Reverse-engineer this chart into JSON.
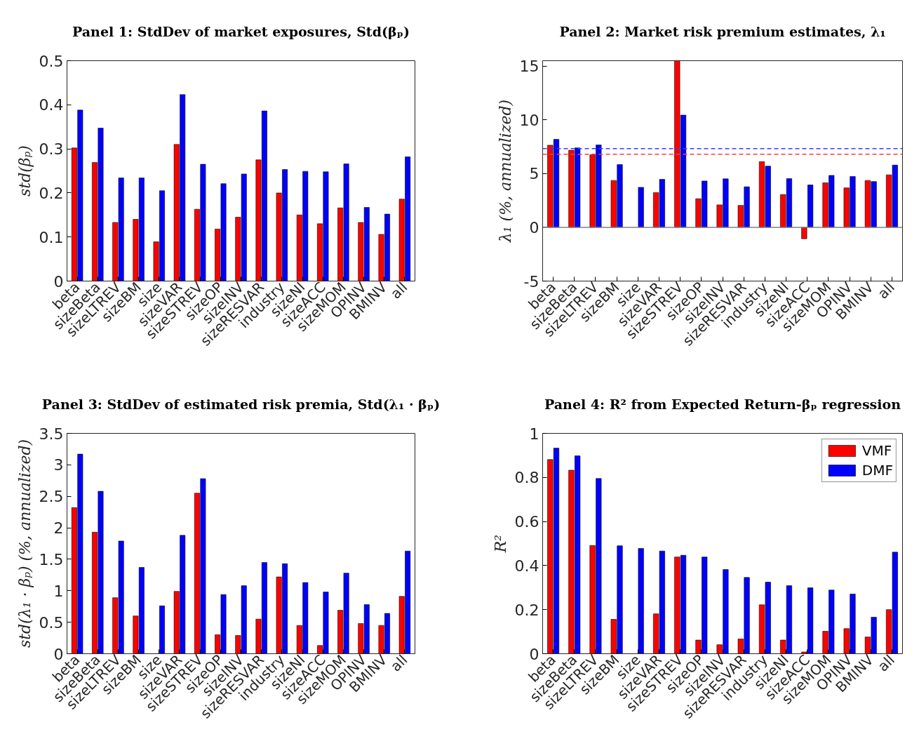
{
  "chart_data": [
    {
      "type": "bar",
      "title": "Panel 1: StdDev of market exposures, Std(βₚ)",
      "ylabel": "std(βₚ)",
      "categories": [
        "beta",
        "sizeBeta",
        "sizeLTREV",
        "sizeBM",
        "size",
        "sizeVAR",
        "sizeSTREV",
        "sizeOP",
        "sizeINV",
        "sizeRESVAR",
        "industry",
        "sizeNI",
        "sizeACC",
        "sizeMOM",
        "OPINV",
        "BMINV",
        "all"
      ],
      "series": [
        {
          "color": "#ff0000",
          "values": [
            0.302,
            0.269,
            0.133,
            0.14,
            0.089,
            0.31,
            0.163,
            0.118,
            0.145,
            0.275,
            0.2,
            0.15,
            0.13,
            0.166,
            0.133,
            0.106,
            0.186
          ]
        },
        {
          "color": "#0000ff",
          "values": [
            0.388,
            0.347,
            0.234,
            0.234,
            0.205,
            0.423,
            0.265,
            0.221,
            0.243,
            0.386,
            0.253,
            0.249,
            0.248,
            0.266,
            0.167,
            0.152,
            0.282
          ]
        }
      ],
      "ylim": [
        0,
        0.5
      ],
      "yticks": [
        0,
        0.1,
        0.2,
        0.3,
        0.4,
        0.5
      ]
    },
    {
      "type": "bar",
      "title": "Panel 2: Market risk premium estimates, λ₁",
      "ylabel": "λ₁ (%, annualized)",
      "categories": [
        "beta",
        "sizeBeta",
        "sizeLTREV",
        "sizeBM",
        "size",
        "sizeVAR",
        "sizeSTREV",
        "sizeOP",
        "sizeINV",
        "sizeRESVAR",
        "industry",
        "sizeNI",
        "sizeACC",
        "sizeMOM",
        "OPINV",
        "BMINV",
        "all"
      ],
      "series": [
        {
          "color": "#ff0000",
          "values": [
            7.64,
            7.17,
            6.75,
            4.36,
            null,
            3.23,
            15.5,
            2.66,
            2.09,
            2.04,
            6.11,
            3.05,
            -1.06,
            4.14,
            3.67,
            4.36,
            4.88
          ]
        },
        {
          "color": "#0000ff",
          "values": [
            8.18,
            7.39,
            7.66,
            5.84,
            3.72,
            4.46,
            10.44,
            4.31,
            4.51,
            3.77,
            5.69,
            4.53,
            3.94,
            4.83,
            4.73,
            4.26,
            5.79
          ]
        }
      ],
      "ylim": [
        -5,
        15.5
      ],
      "yticks": [
        -5,
        0,
        5,
        10,
        15
      ],
      "ref_lines": [
        {
          "axis": "y",
          "value": 0,
          "color": "#808080",
          "line_style": "solid"
        },
        {
          "axis": "y",
          "value": 7.32,
          "color": "#3b3bff",
          "line_style": "dashed"
        },
        {
          "axis": "y",
          "value": 6.8,
          "color": "#ff3b3b",
          "line_style": "dashed"
        }
      ]
    },
    {
      "type": "bar",
      "title": "Panel 3: StdDev of estimated risk premia, Std(λ₁ · βₚ)",
      "ylabel": "std(λ₁ · βₚ) (%, annualized)",
      "categories": [
        "beta",
        "sizeBeta",
        "sizeLTREV",
        "sizeBM",
        "size",
        "sizeVAR",
        "sizeSTREV",
        "sizeOP",
        "sizeINV",
        "sizeRESVAR",
        "industry",
        "sizeNI",
        "sizeACC",
        "sizeMOM",
        "OPINV",
        "BMINV",
        "all"
      ],
      "series": [
        {
          "color": "#ff0000",
          "values": [
            2.32,
            1.93,
            0.89,
            0.6,
            0,
            0.99,
            2.55,
            0.3,
            0.29,
            0.55,
            1.22,
            0.45,
            0.13,
            0.69,
            0.48,
            0.45,
            0.91
          ]
        },
        {
          "color": "#0000ff",
          "values": [
            3.17,
            2.58,
            1.79,
            1.37,
            0.76,
            1.88,
            2.78,
            0.94,
            1.08,
            1.45,
            1.43,
            1.13,
            0.98,
            1.28,
            0.78,
            0.64,
            1.63
          ]
        }
      ],
      "ylim": [
        0,
        3.5
      ],
      "yticks": [
        0,
        0.5,
        1,
        1.5,
        2,
        2.5,
        3,
        3.5
      ]
    },
    {
      "type": "bar",
      "title": "Panel 4: R² from Expected Return-βₚ regression",
      "ylabel": "R²",
      "categories": [
        "beta",
        "sizeBeta",
        "sizeLTREV",
        "sizeBM",
        "size",
        "sizeVAR",
        "sizeSTREV",
        "sizeOP",
        "sizeINV",
        "sizeRESVAR",
        "industry",
        "sizeNI",
        "sizeACC",
        "sizeMOM",
        "OPINV",
        "BMINV",
        "all"
      ],
      "series": [
        {
          "name": "VMF",
          "color": "#ff0000",
          "values": [
            0.881,
            0.833,
            0.491,
            0.156,
            null,
            0.181,
            0.439,
            0.062,
            0.041,
            0.067,
            0.222,
            0.062,
            0.008,
            0.102,
            0.114,
            0.076,
            0.2
          ]
        },
        {
          "name": "DMF",
          "color": "#0000ff",
          "values": [
            0.933,
            0.898,
            0.795,
            0.49,
            0.478,
            0.466,
            0.447,
            0.439,
            0.382,
            0.346,
            0.325,
            0.309,
            0.299,
            0.289,
            0.271,
            0.166,
            0.461
          ]
        }
      ],
      "ylim": [
        0,
        1
      ],
      "yticks": [
        0,
        0.2,
        0.4,
        0.6,
        0.8,
        1
      ],
      "legend": "top right"
    }
  ]
}
